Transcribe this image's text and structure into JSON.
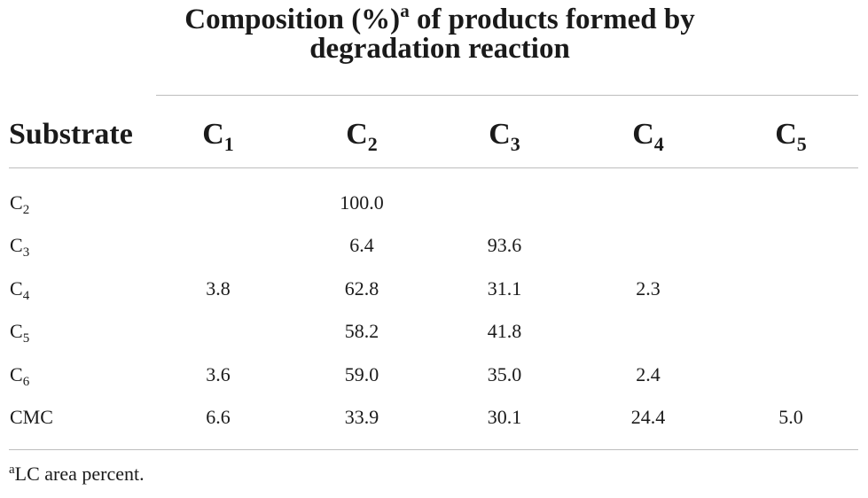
{
  "group_header": {
    "title_line1_pre": "Composition (%)",
    "title_marker": "a",
    "title_line1_post": " of products formed by",
    "title_line2": "degradation reaction"
  },
  "columns": {
    "substrate": "Substrate",
    "products": [
      {
        "base": "C",
        "sub": "1"
      },
      {
        "base": "C",
        "sub": "2"
      },
      {
        "base": "C",
        "sub": "3"
      },
      {
        "base": "C",
        "sub": "4"
      },
      {
        "base": "C",
        "sub": "5"
      }
    ]
  },
  "rows": [
    {
      "substrate": {
        "base": "C",
        "sub": "2"
      },
      "values": [
        "",
        "100.0",
        "",
        "",
        ""
      ]
    },
    {
      "substrate": {
        "base": "C",
        "sub": "3"
      },
      "values": [
        "",
        "6.4",
        "93.6",
        "",
        ""
      ]
    },
    {
      "substrate": {
        "base": "C",
        "sub": "4"
      },
      "values": [
        "3.8",
        "62.8",
        "31.1",
        "2.3",
        ""
      ]
    },
    {
      "substrate": {
        "base": "C",
        "sub": "5"
      },
      "values": [
        "",
        "58.2",
        "41.8",
        "",
        ""
      ]
    },
    {
      "substrate": {
        "base": "C",
        "sub": "6"
      },
      "values": [
        "3.6",
        "59.0",
        "35.0",
        "2.4",
        ""
      ]
    },
    {
      "substrate": {
        "base": "CMC",
        "sub": ""
      },
      "values": [
        "6.6",
        "33.9",
        "30.1",
        "24.4",
        "5.0"
      ]
    }
  ],
  "footnote": {
    "marker": "a",
    "text": "LC area percent."
  }
}
